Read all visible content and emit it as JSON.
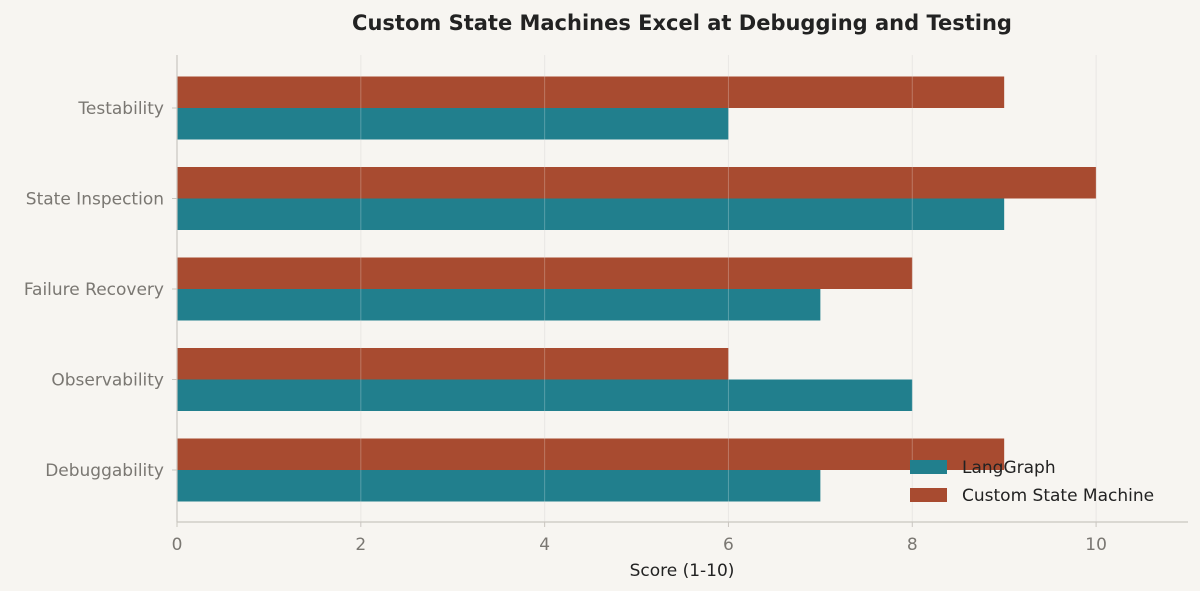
{
  "chart_data": {
    "type": "bar",
    "orientation": "horizontal",
    "title": "Custom State Machines Excel at Debugging and Testing",
    "xlabel": "Score (1-10)",
    "ylabel": "",
    "categories": [
      "Debuggability",
      "Observability",
      "Failure Recovery",
      "State Inspection",
      "Testability"
    ],
    "series": [
      {
        "name": "LangGraph",
        "color": "#217f8d",
        "values": [
          7,
          8,
          7,
          9,
          6
        ]
      },
      {
        "name": "Custom State Machine",
        "color": "#a84b30",
        "values": [
          9,
          6,
          8,
          10,
          9
        ]
      }
    ],
    "xlim": [
      0,
      11
    ],
    "xticks": [
      0,
      2,
      4,
      6,
      8,
      10
    ],
    "grid": true,
    "legend_position": "lower-right",
    "background": "#f7f5f1",
    "grid_color": "#e3e1dc",
    "axis_color": "#c9c6c0"
  }
}
